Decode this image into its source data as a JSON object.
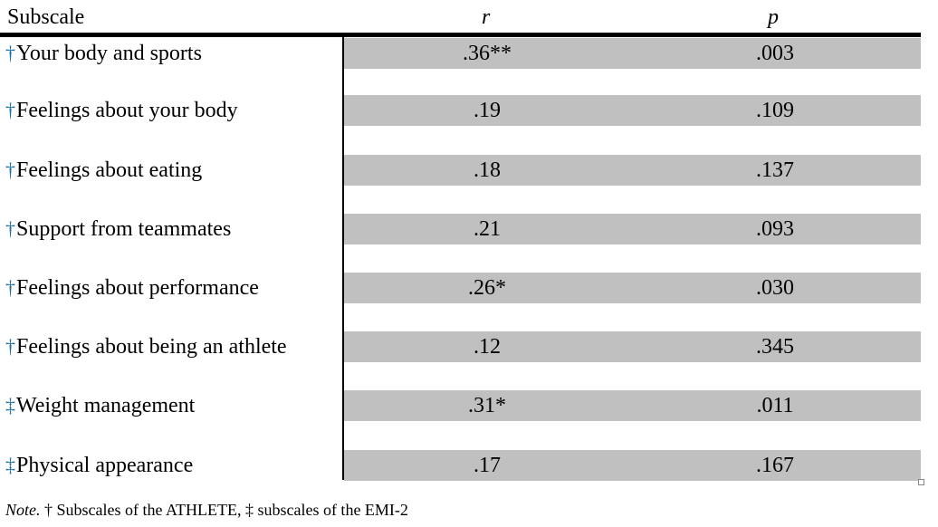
{
  "header": {
    "subscale": "Subscale",
    "r": "r",
    "p": "p"
  },
  "rows": [
    {
      "mark": "†",
      "label": "Your body and sports",
      "r": ".36**",
      "p": ".003"
    },
    {
      "mark": "†",
      "label": "Feelings about your body",
      "r": ".19",
      "p": ".109"
    },
    {
      "mark": "†",
      "label": "Feelings about eating",
      "r": ".18",
      "p": ".137"
    },
    {
      "mark": "†",
      "label": "Support from teammates",
      "r": ".21",
      "p": ".093"
    },
    {
      "mark": "†",
      "label": "Feelings about performance",
      "r": ".26*",
      "p": ".030"
    },
    {
      "mark": "†",
      "label": "Feelings about being an athlete",
      "r": ".12",
      "p": ".345"
    },
    {
      "mark": "‡",
      "label": "Weight management",
      "r": ".31*",
      "p": ".011"
    },
    {
      "mark": "‡",
      "label": "Physical appearance",
      "r": ".17",
      "p": ".167"
    }
  ],
  "note": {
    "lead": "Note.",
    "text": " † Subscales of the ATHLETE, ‡ subscales of the EMI-2"
  },
  "colors": {
    "row_shade": "#c0c0c0",
    "dagger": "#1f6fa8"
  }
}
